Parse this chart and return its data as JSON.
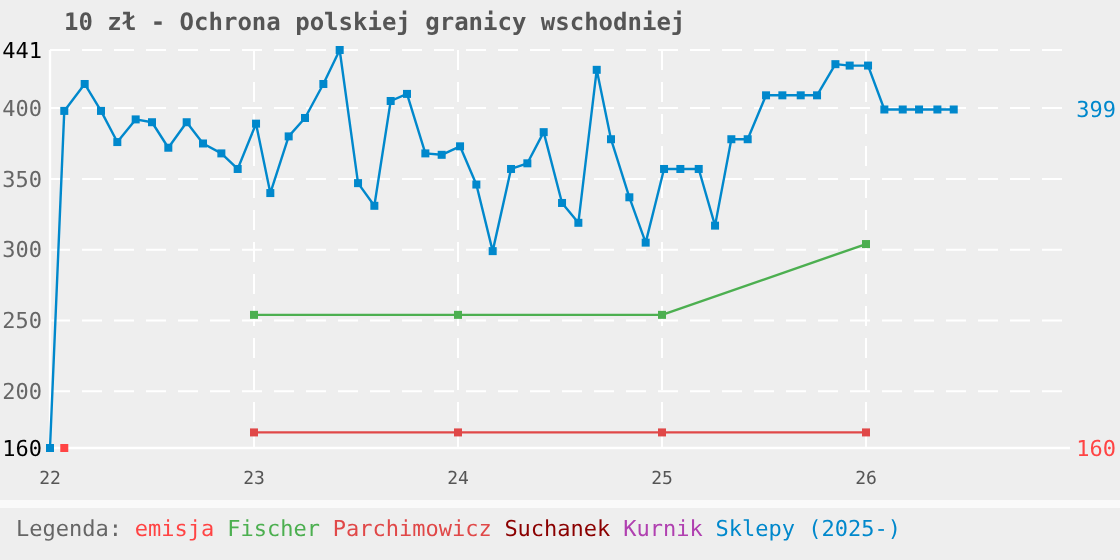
{
  "chart_data": {
    "type": "line",
    "title": "10 zł - Ochrona polskiej granicy wschodniej",
    "legend_title": "Legenda:",
    "legend": "bottom",
    "grid": true,
    "marker": "square",
    "line_style": "solid",
    "xlim": [
      22,
      27
    ],
    "xticks": [
      22,
      23,
      24,
      25,
      26
    ],
    "ylim": [
      160,
      441
    ],
    "yticks": [
      160,
      200,
      250,
      300,
      350,
      400,
      441
    ],
    "series": [
      {
        "name": "emisja",
        "color": "#ff4444",
        "x": [
          22.07
        ],
        "values": [
          160
        ]
      },
      {
        "name": "Fischer",
        "color": "#4caf50",
        "x": [
          23,
          24,
          25,
          26
        ],
        "values": [
          254,
          254,
          254,
          304
        ]
      },
      {
        "name": "Parchimowicz",
        "color": "#e04848",
        "x": [
          23,
          24,
          25,
          26
        ],
        "values": [
          171,
          171,
          171,
          171
        ]
      },
      {
        "name": "Suchanek",
        "color": "#8b0000"
      },
      {
        "name": "Kurnik",
        "color": "#b040b0"
      },
      {
        "name": "Sklepy (2025-)",
        "color": "#0088cc",
        "x": [
          22.0,
          22.07,
          22.17,
          22.25,
          22.33,
          22.42,
          22.5,
          22.58,
          22.67,
          22.75,
          22.84,
          22.92,
          23.01,
          23.08,
          23.17,
          23.25,
          23.34,
          23.42,
          23.51,
          23.59,
          23.67,
          23.75,
          23.84,
          23.92,
          24.01,
          24.09,
          24.17,
          24.26,
          24.34,
          24.42,
          24.51,
          24.59,
          24.68,
          24.75,
          24.84,
          24.92,
          25.01,
          25.09,
          25.18,
          25.26,
          25.34,
          25.42,
          25.51,
          25.59,
          25.68,
          25.76,
          25.85,
          25.92,
          26.01,
          26.09,
          26.18,
          26.26,
          26.35,
          26.43
        ],
        "values": [
          160,
          398,
          417,
          398,
          376,
          392,
          390,
          372,
          390,
          375,
          368,
          357,
          389,
          340,
          380,
          393,
          417,
          441,
          347,
          331,
          405,
          410,
          368,
          367,
          373,
          346,
          299,
          357,
          361,
          383,
          333,
          319,
          427,
          378,
          337,
          305,
          357,
          357,
          357,
          317,
          378,
          378,
          409,
          409,
          409,
          409,
          431,
          430,
          430,
          399,
          399,
          399,
          399,
          399
        ]
      }
    ],
    "annotations": [
      "399",
      "160"
    ]
  }
}
